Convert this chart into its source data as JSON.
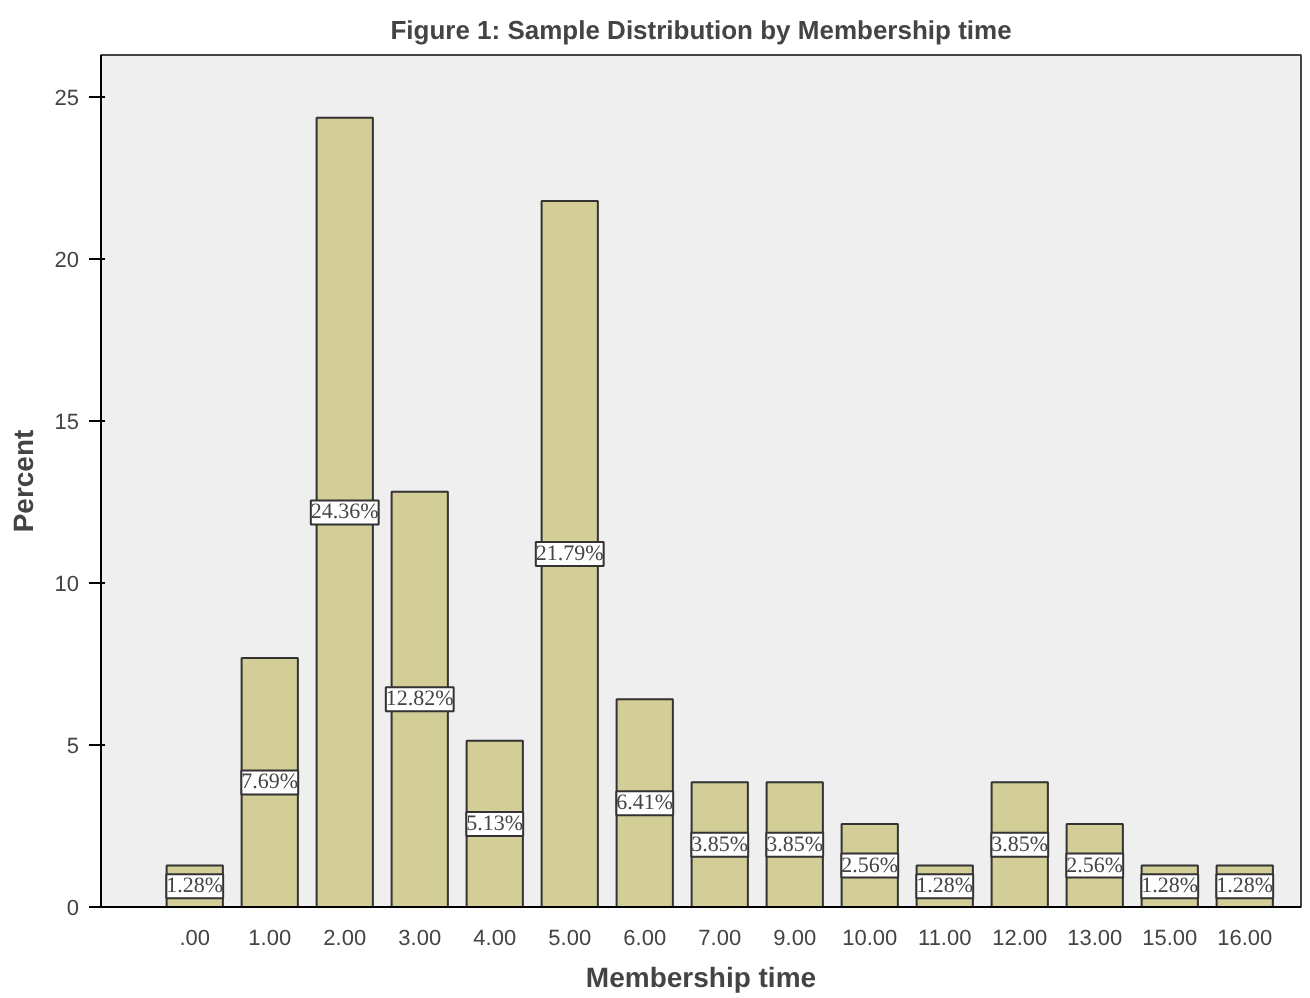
{
  "chart_data": {
    "type": "bar",
    "title": "Figure 1: Sample Distribution by Membership time",
    "xlabel": "Membership time",
    "ylabel": "Percent",
    "categories": [
      ".00",
      "1.00",
      "2.00",
      "3.00",
      "4.00",
      "5.00",
      "6.00",
      "7.00",
      "9.00",
      "10.00",
      "11.00",
      "12.00",
      "13.00",
      "15.00",
      "16.00"
    ],
    "values": [
      1.28,
      7.69,
      24.36,
      12.82,
      5.13,
      21.79,
      6.41,
      3.85,
      3.85,
      2.56,
      1.28,
      3.85,
      2.56,
      1.28,
      1.28
    ],
    "value_labels": [
      "1.28%",
      "7.69%",
      "24.36%",
      "12.82%",
      "5.13%",
      "21.79%",
      "6.41%",
      "3.85%",
      "3.85%",
      "2.56%",
      "1.28%",
      "3.85%",
      "2.56%",
      "1.28%",
      "1.28%"
    ],
    "color": "#d3ce97",
    "ylim": [
      0,
      26.3
    ],
    "yticks": [
      0,
      5,
      10,
      15,
      20,
      25
    ],
    "grid": false
  }
}
